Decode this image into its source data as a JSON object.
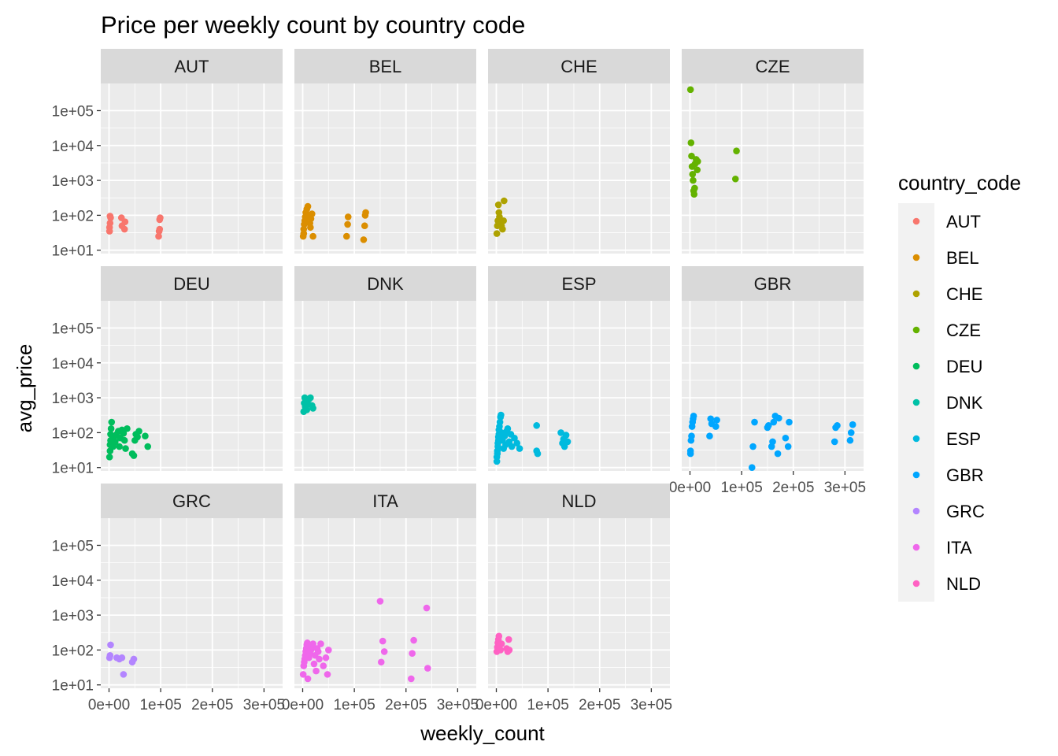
{
  "chart_data": {
    "type": "scatter",
    "title": "Price per weekly count by country code",
    "xlabel": "weekly_count",
    "ylabel": "avg_price",
    "y_scale": "log10",
    "xlim": [
      -16000,
      336000
    ],
    "ylim": [
      8,
      600000
    ],
    "x_ticks": [
      0,
      100000,
      200000,
      300000
    ],
    "x_tick_labels": [
      "0e+00",
      "1e+05",
      "2e+05",
      "3e+05"
    ],
    "y_ticks": [
      10,
      100,
      1000,
      10000,
      100000
    ],
    "y_tick_labels": [
      "1e+01",
      "1e+02",
      "1e+03",
      "1e+04",
      "1e+05"
    ],
    "facet_ncol": 4,
    "grid": true,
    "legend": {
      "title": "country_code",
      "position": "right"
    },
    "series": [
      {
        "name": "AUT",
        "color": "#F8766D",
        "points": [
          [
            1000,
            35
          ],
          [
            1000,
            45
          ],
          [
            2000,
            60
          ],
          [
            3000,
            85
          ],
          [
            2000,
            95
          ],
          [
            24000,
            85
          ],
          [
            25000,
            50
          ],
          [
            30000,
            40
          ],
          [
            31000,
            65
          ],
          [
            96000,
            25
          ],
          [
            97000,
            35
          ],
          [
            98000,
            75
          ],
          [
            99000,
            85
          ],
          [
            98000,
            40
          ]
        ]
      },
      {
        "name": "BEL",
        "color": "#DB8E00",
        "points": [
          [
            1000,
            25
          ],
          [
            2000,
            30
          ],
          [
            2000,
            40
          ],
          [
            3000,
            55
          ],
          [
            4000,
            70
          ],
          [
            5000,
            90
          ],
          [
            6000,
            120
          ],
          [
            8000,
            150
          ],
          [
            10000,
            180
          ],
          [
            12000,
            100
          ],
          [
            14000,
            60
          ],
          [
            15000,
            45
          ],
          [
            16000,
            80
          ],
          [
            18000,
            110
          ],
          [
            20000,
            25
          ],
          [
            85000,
            25
          ],
          [
            87000,
            55
          ],
          [
            88000,
            90
          ],
          [
            118000,
            20
          ],
          [
            120000,
            50
          ],
          [
            121000,
            100
          ],
          [
            122000,
            120
          ]
        ]
      },
      {
        "name": "CHE",
        "color": "#AEA200",
        "points": [
          [
            1000,
            30
          ],
          [
            2000,
            50
          ],
          [
            3000,
            70
          ],
          [
            4000,
            200
          ],
          [
            5000,
            120
          ],
          [
            6000,
            90
          ],
          [
            8000,
            65
          ],
          [
            10000,
            50
          ],
          [
            12000,
            40
          ],
          [
            14000,
            70
          ],
          [
            15000,
            260
          ]
        ]
      },
      {
        "name": "CZE",
        "color": "#64B200",
        "points": [
          [
            1000,
            400000
          ],
          [
            2000,
            12000
          ],
          [
            3000,
            5000
          ],
          [
            4000,
            2500
          ],
          [
            5000,
            1500
          ],
          [
            6000,
            1000
          ],
          [
            7000,
            500
          ],
          [
            8000,
            400
          ],
          [
            9000,
            600
          ],
          [
            10000,
            3000
          ],
          [
            12000,
            4000
          ],
          [
            14000,
            2000
          ],
          [
            15000,
            3500
          ],
          [
            90000,
            7000
          ],
          [
            88000,
            1100
          ]
        ]
      },
      {
        "name": "DEU",
        "color": "#00BD5C",
        "points": [
          [
            1000,
            20
          ],
          [
            2000,
            30
          ],
          [
            2000,
            45
          ],
          [
            3000,
            60
          ],
          [
            3000,
            90
          ],
          [
            4000,
            130
          ],
          [
            5000,
            200
          ],
          [
            8000,
            40
          ],
          [
            10000,
            75
          ],
          [
            12000,
            55
          ],
          [
            15000,
            90
          ],
          [
            18000,
            110
          ],
          [
            20000,
            40
          ],
          [
            22000,
            70
          ],
          [
            25000,
            120
          ],
          [
            28000,
            95
          ],
          [
            30000,
            60
          ],
          [
            32000,
            35
          ],
          [
            35000,
            130
          ],
          [
            45000,
            25
          ],
          [
            48000,
            22
          ],
          [
            50000,
            60
          ],
          [
            52000,
            90
          ],
          [
            55000,
            75
          ],
          [
            58000,
            110
          ],
          [
            70000,
            80
          ],
          [
            75000,
            40
          ]
        ]
      },
      {
        "name": "DNK",
        "color": "#00C1A7",
        "points": [
          [
            2000,
            400
          ],
          [
            3000,
            700
          ],
          [
            4000,
            1000
          ],
          [
            5000,
            550
          ],
          [
            6000,
            850
          ],
          [
            8000,
            450
          ],
          [
            10000,
            650
          ],
          [
            12000,
            900
          ],
          [
            15000,
            1000
          ],
          [
            18000,
            600
          ],
          [
            20000,
            500
          ]
        ]
      },
      {
        "name": "ESP",
        "color": "#00BADE",
        "points": [
          [
            1000,
            15
          ],
          [
            1000,
            20
          ],
          [
            2000,
            25
          ],
          [
            2000,
            30
          ],
          [
            3000,
            40
          ],
          [
            3000,
            50
          ],
          [
            4000,
            60
          ],
          [
            4000,
            75
          ],
          [
            5000,
            90
          ],
          [
            5000,
            120
          ],
          [
            6000,
            150
          ],
          [
            7000,
            200
          ],
          [
            8000,
            280
          ],
          [
            9000,
            320
          ],
          [
            10000,
            100
          ],
          [
            12000,
            60
          ],
          [
            14000,
            35
          ],
          [
            16000,
            80
          ],
          [
            18000,
            45
          ],
          [
            20000,
            110
          ],
          [
            22000,
            130
          ],
          [
            25000,
            55
          ],
          [
            28000,
            90
          ],
          [
            30000,
            40
          ],
          [
            35000,
            70
          ],
          [
            40000,
            50
          ],
          [
            45000,
            35
          ],
          [
            78000,
            160
          ],
          [
            78000,
            30
          ],
          [
            80000,
            25
          ],
          [
            125000,
            100
          ],
          [
            128000,
            50
          ],
          [
            130000,
            65
          ],
          [
            132000,
            40
          ],
          [
            135000,
            85
          ],
          [
            138000,
            55
          ]
        ]
      },
      {
        "name": "GBR",
        "color": "#00A6FF",
        "points": [
          [
            1000,
            30
          ],
          [
            1000,
            25
          ],
          [
            2000,
            60
          ],
          [
            3000,
            80
          ],
          [
            4000,
            150
          ],
          [
            5000,
            200
          ],
          [
            6000,
            250
          ],
          [
            7000,
            300
          ],
          [
            38000,
            80
          ],
          [
            40000,
            250
          ],
          [
            42000,
            180
          ],
          [
            50000,
            150
          ],
          [
            52000,
            230
          ],
          [
            120000,
            10
          ],
          [
            122000,
            40
          ],
          [
            125000,
            200
          ],
          [
            150000,
            140
          ],
          [
            152000,
            160
          ],
          [
            158000,
            40
          ],
          [
            160000,
            55
          ],
          [
            162000,
            200
          ],
          [
            165000,
            300
          ],
          [
            170000,
            25
          ],
          [
            172000,
            260
          ],
          [
            185000,
            70
          ],
          [
            190000,
            40
          ],
          [
            192000,
            200
          ],
          [
            280000,
            55
          ],
          [
            282000,
            140
          ],
          [
            285000,
            160
          ],
          [
            310000,
            60
          ],
          [
            312000,
            100
          ],
          [
            315000,
            170
          ]
        ]
      },
      {
        "name": "GRC",
        "color": "#B385FF",
        "points": [
          [
            1000,
            60
          ],
          [
            2000,
            70
          ],
          [
            3000,
            140
          ],
          [
            15000,
            60
          ],
          [
            20000,
            55
          ],
          [
            25000,
            60
          ],
          [
            28000,
            20
          ],
          [
            45000,
            45
          ],
          [
            48000,
            55
          ]
        ]
      },
      {
        "name": "ITA",
        "color": "#EF67EB",
        "points": [
          [
            1000,
            20
          ],
          [
            2000,
            35
          ],
          [
            3000,
            45
          ],
          [
            4000,
            55
          ],
          [
            5000,
            70
          ],
          [
            6000,
            90
          ],
          [
            7000,
            110
          ],
          [
            8000,
            140
          ],
          [
            9000,
            160
          ],
          [
            10000,
            15
          ],
          [
            12000,
            60
          ],
          [
            14000,
            80
          ],
          [
            16000,
            100
          ],
          [
            18000,
            130
          ],
          [
            20000,
            150
          ],
          [
            22000,
            40
          ],
          [
            24000,
            70
          ],
          [
            26000,
            25
          ],
          [
            28000,
            110
          ],
          [
            30000,
            90
          ],
          [
            32000,
            55
          ],
          [
            35000,
            150
          ],
          [
            40000,
            35
          ],
          [
            45000,
            60
          ],
          [
            48000,
            20
          ],
          [
            50000,
            100
          ],
          [
            150000,
            2500
          ],
          [
            152000,
            45
          ],
          [
            155000,
            180
          ],
          [
            158000,
            90
          ],
          [
            210000,
            15
          ],
          [
            212000,
            80
          ],
          [
            215000,
            190
          ],
          [
            240000,
            1600
          ],
          [
            242000,
            30
          ]
        ]
      },
      {
        "name": "NLD",
        "color": "#FF61C3",
        "points": [
          [
            1000,
            90
          ],
          [
            2000,
            120
          ],
          [
            3000,
            160
          ],
          [
            4000,
            200
          ],
          [
            5000,
            250
          ],
          [
            6000,
            130
          ],
          [
            8000,
            100
          ],
          [
            10000,
            150
          ],
          [
            20000,
            110
          ],
          [
            22000,
            90
          ],
          [
            24000,
            200
          ],
          [
            25000,
            100
          ]
        ]
      }
    ]
  }
}
